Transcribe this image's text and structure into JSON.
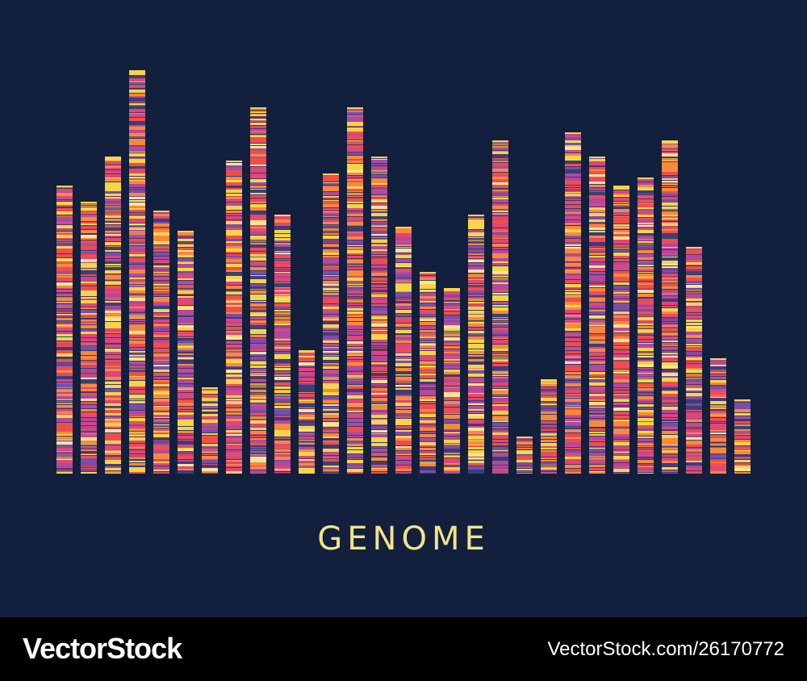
{
  "title": "GENOME",
  "footer": {
    "brand": "VectorStock",
    "image_id": "VectorStock.com/26170772"
  },
  "colors": {
    "background": "#12203e",
    "title": "#f3e38a",
    "footer": "#000000",
    "stripe_palette": [
      "#f5d547",
      "#f78a3a",
      "#f04e4e",
      "#e0457b",
      "#b04a9e",
      "#7a4ea8",
      "#3d3f78",
      "#fbe39a"
    ]
  },
  "bar_levels": [
    0.7,
    0.66,
    0.77,
    0.98,
    0.64,
    0.59,
    0.21,
    0.76,
    0.89,
    0.63,
    0.3,
    0.73,
    0.89,
    0.77,
    0.6,
    0.49,
    0.45,
    0.63,
    0.81,
    0.09,
    0.23,
    0.83,
    0.77,
    0.7,
    0.72,
    0.81,
    0.55,
    0.28,
    0.18
  ]
}
